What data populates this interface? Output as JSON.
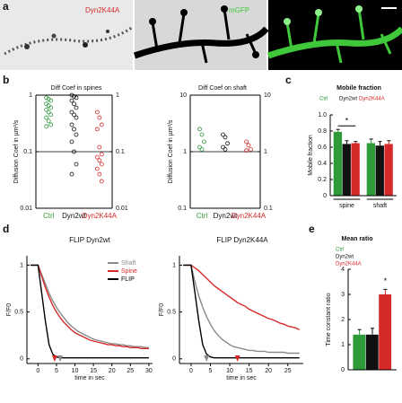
{
  "panel_labels": [
    "a",
    "b",
    "c",
    "d",
    "e"
  ],
  "images": {
    "labels": [
      "Dyn2K44A",
      "mGFP"
    ]
  },
  "chart_data": [
    {
      "type": "strip",
      "title": "Diff Coef in spines",
      "y_label": "Diffusion Coef in µm²/s",
      "log": true,
      "categories": [
        "Ctrl",
        "Dyn2wt",
        "Dyn2K44A"
      ],
      "colors": [
        "#2e9a3a",
        "#111111",
        "#d62a2a"
      ],
      "points": [
        [
          0.9,
          0.85,
          0.8,
          0.7,
          0.65,
          0.6,
          0.55,
          0.5,
          0.45,
          0.4,
          0.35,
          0.3,
          0.28
        ],
        [
          1,
          0.95,
          0.9,
          0.8,
          0.7,
          0.6,
          0.5,
          0.45,
          0.4,
          0.3,
          0.25,
          0.2,
          0.15,
          0.1,
          0.06,
          0.04
        ],
        [
          0.5,
          0.4,
          0.3,
          0.25,
          0.12,
          0.09,
          0.08,
          0.07,
          0.06,
          0.05,
          0.04,
          0.03
        ]
      ],
      "reference_line": 0.1,
      "ylim": [
        0.01,
        1
      ],
      "yticks": [
        0.01,
        0.1,
        1
      ]
    },
    {
      "type": "strip",
      "title": "Diff Coef on shaft",
      "y_label": "Diffusion Coef in µm²/s",
      "log": true,
      "categories": [
        "Ctrl",
        "Dyn2wt",
        "Dyn2K44A"
      ],
      "colors": [
        "#2e9a3a",
        "#111111",
        "#d62a2a"
      ],
      "points": [
        [
          2.5,
          2,
          1.5,
          1.2,
          1.1
        ],
        [
          2,
          1.8,
          1.4,
          1.2,
          1.1
        ],
        [
          1.5,
          1.3,
          1.1,
          1.05
        ]
      ],
      "reference_line": 1,
      "ylim": [
        0.1,
        10
      ],
      "yticks": [
        0.1,
        1,
        10
      ]
    },
    {
      "type": "bar",
      "title": "Mobile fraction",
      "y_label": "Mobile fraction",
      "groups": [
        "spine",
        "shaft"
      ],
      "series": [
        {
          "name": "Ctrl",
          "color": "#2e9a3a",
          "values": [
            0.79,
            0.65
          ],
          "errors": [
            0.03,
            0.05
          ]
        },
        {
          "name": "Dyn2wt",
          "color": "#111111",
          "values": [
            0.64,
            0.62
          ],
          "errors": [
            0.04,
            0.05
          ]
        },
        {
          "name": "Dyn2K44A",
          "color": "#d62a2a",
          "values": [
            0.65,
            0.64
          ],
          "errors": [
            0.02,
            0.04
          ]
        }
      ],
      "annotation": "*",
      "ylim": [
        0,
        1
      ],
      "yticks": [
        0,
        0.2,
        0.4,
        0.6,
        0.8,
        {
          "value": 1,
          "label": "1.0"
        }
      ]
    },
    {
      "type": "line",
      "title": "FLIP Dyn2wt",
      "x_label": "time in sec",
      "y_label": "F/F0",
      "x": [
        -2,
        -1,
        0,
        1,
        2,
        3,
        4,
        5,
        6,
        7,
        8,
        9,
        10,
        11,
        12,
        13,
        14,
        15,
        16,
        17,
        18,
        19,
        20,
        21,
        22,
        23,
        24,
        25,
        26,
        27,
        28,
        29,
        30
      ],
      "series": [
        {
          "name": "Shaft",
          "color": "#8a8a8a",
          "values": [
            1,
            1,
            1,
            0.9,
            0.8,
            0.7,
            0.62,
            0.55,
            0.49,
            0.44,
            0.39,
            0.35,
            0.32,
            0.29,
            0.27,
            0.25,
            0.23,
            0.21,
            0.2,
            0.19,
            0.18,
            0.17,
            0.16,
            0.16,
            0.15,
            0.15,
            0.14,
            0.14,
            0.13,
            0.13,
            0.13,
            0.12,
            0.12
          ]
        },
        {
          "name": "Spine",
          "color": "#d62a2a",
          "values": [
            1,
            1,
            1,
            0.88,
            0.76,
            0.66,
            0.57,
            0.5,
            0.44,
            0.39,
            0.35,
            0.31,
            0.28,
            0.26,
            0.24,
            0.22,
            0.2,
            0.19,
            0.18,
            0.17,
            0.16,
            0.15,
            0.15,
            0.14,
            0.14,
            0.13,
            0.13,
            0.12,
            0.12,
            0.12,
            0.11,
            0.11,
            0.11
          ]
        },
        {
          "name": "FLIP",
          "color": "#000000",
          "values": [
            1,
            1,
            1,
            0.7,
            0.4,
            0.15,
            0.05,
            0.02,
            0.01,
            0.01,
            0.01,
            0.01,
            0.01,
            0.01,
            0.01,
            0.01,
            0.01,
            0.01,
            0.01,
            0.01,
            0.01,
            0.01,
            0.01,
            0.01,
            0.01,
            0.01,
            0.01,
            0.01,
            0.01,
            0.01,
            0.01,
            0.01,
            0.01
          ]
        }
      ],
      "arrows": [
        {
          "x": 4.5,
          "color": "#d62a2a"
        },
        {
          "x": 6,
          "color": "#8a8a8a"
        }
      ],
      "xlim": [
        -3,
        31
      ],
      "xticks": [
        0,
        5,
        10,
        15,
        20,
        25,
        30
      ],
      "ylim": [
        -0.05,
        1.1
      ],
      "yticks": [
        0,
        0.5,
        1
      ]
    },
    {
      "type": "line",
      "title": "FLIP Dyn2K44A",
      "x_label": "time in sec",
      "y_label": "F/F0",
      "x": [
        -2,
        -1,
        0,
        1,
        2,
        3,
        4,
        5,
        6,
        7,
        8,
        9,
        10,
        11,
        12,
        13,
        14,
        15,
        16,
        17,
        18,
        19,
        20,
        21,
        22,
        23,
        24,
        25,
        26,
        27,
        28
      ],
      "series": [
        {
          "name": "Shaft",
          "color": "#8a8a8a",
          "values": [
            1,
            1,
            1,
            0.82,
            0.67,
            0.55,
            0.45,
            0.37,
            0.3,
            0.25,
            0.21,
            0.18,
            0.15,
            0.13,
            0.12,
            0.11,
            0.1,
            0.09,
            0.09,
            0.08,
            0.08,
            0.08,
            0.07,
            0.07,
            0.07,
            0.07,
            0.07,
            0.06,
            0.06,
            0.06,
            0.06
          ]
        },
        {
          "name": "Spine",
          "color": "#d62a2a",
          "values": [
            1,
            1,
            1,
            0.97,
            0.94,
            0.9,
            0.86,
            0.82,
            0.78,
            0.75,
            0.72,
            0.69,
            0.66,
            0.63,
            0.6,
            0.58,
            0.56,
            0.53,
            0.51,
            0.49,
            0.47,
            0.45,
            0.43,
            0.42,
            0.4,
            0.38,
            0.37,
            0.35,
            0.34,
            0.33,
            0.31
          ]
        },
        {
          "name": "FLIP",
          "color": "#000000",
          "values": [
            1,
            1,
            1,
            0.7,
            0.4,
            0.15,
            0.05,
            0.02,
            0.01,
            0.01,
            0.01,
            0.01,
            0.01,
            0.01,
            0.01,
            0.01,
            0.01,
            0.01,
            0.01,
            0.01,
            0.01,
            0.01,
            0.01,
            0.01,
            0.01,
            0.01,
            0.01,
            0.01,
            0.01,
            0.01,
            0.01
          ]
        }
      ],
      "arrows": [
        {
          "x": 4,
          "color": "#8a8a8a"
        },
        {
          "x": 12,
          "color": "#d62a2a"
        }
      ],
      "xlim": [
        -3,
        29
      ],
      "xticks": [
        0,
        5,
        10,
        15,
        20,
        25
      ],
      "ylim": [
        -0.05,
        1.1
      ],
      "yticks": [
        0,
        0.5,
        1
      ]
    },
    {
      "type": "bar",
      "title": "Mean ratio",
      "y_label": "Time constant ratio",
      "groups": [
        null
      ],
      "series": [
        {
          "name": "Ctrl",
          "color": "#2e9a3a",
          "values": [
            1.4
          ],
          "errors": [
            0.2
          ]
        },
        {
          "name": "Dyn2wt",
          "color": "#111111",
          "values": [
            1.4
          ],
          "errors": [
            0.25
          ]
        },
        {
          "name": "Dyn2K44A",
          "color": "#d62a2a",
          "values": [
            3
          ],
          "errors": [
            0.2
          ]
        }
      ],
      "annotation": "*",
      "ylim": [
        0,
        4
      ],
      "yticks": [
        0,
        1,
        2,
        3,
        4
      ]
    }
  ]
}
